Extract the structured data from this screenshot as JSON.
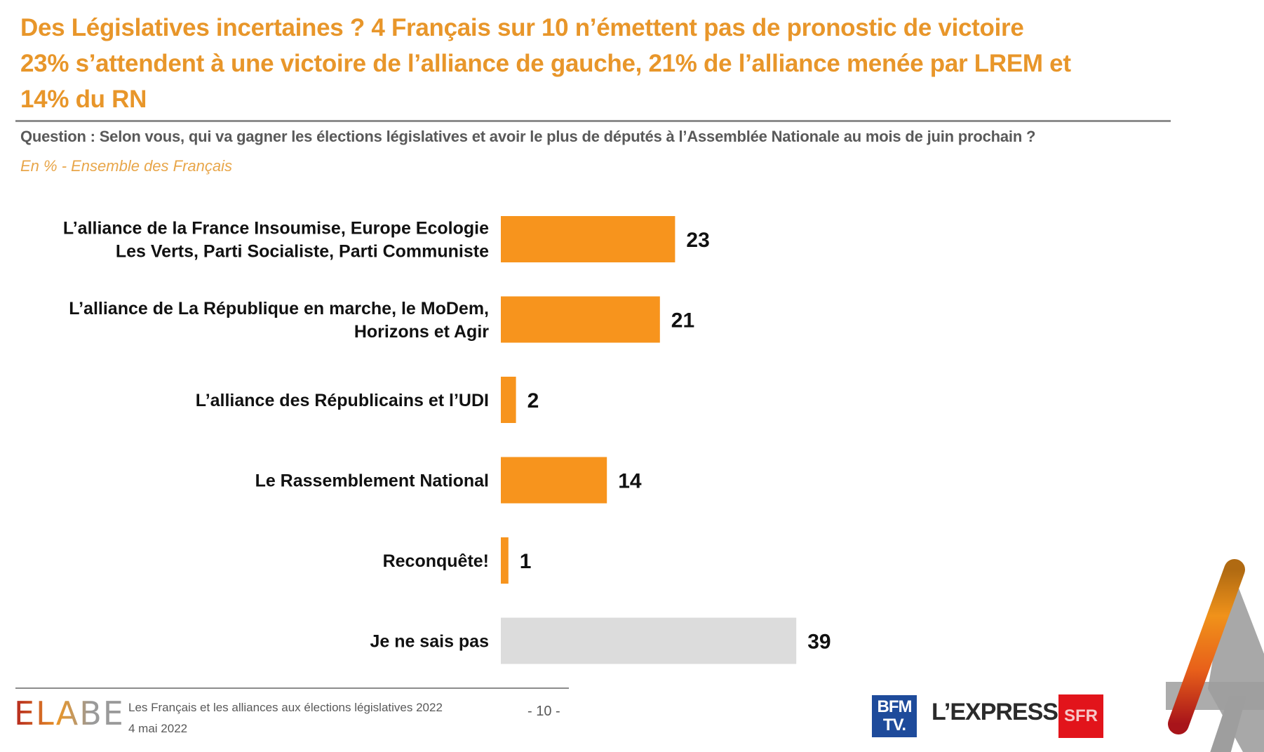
{
  "header": {
    "title_lines": [
      "Des Législatives incertaines ? 4 Français sur 10 n’émettent pas de pronostic de victoire",
      "23% s’attendent à une victoire de l’alliance de gauche, 21% de l’alliance menée par LREM et",
      "14% du RN"
    ],
    "question": "Question : Selon vous, qui va gagner les élections législatives et avoir le plus de députés à l’Assemblée Nationale au mois de juin prochain ?",
    "subtitle": "En % - Ensemble des Français"
  },
  "colors": {
    "accent": "#f7941d",
    "neutral_bar": "#dcdcdc",
    "title": "#e8962a"
  },
  "chart_data": {
    "type": "bar",
    "orientation": "horizontal",
    "unit": "%",
    "categories": [
      [
        "L’alliance de la France Insoumise, Europe Ecologie",
        "Les Verts, Parti Socialiste, Parti Communiste"
      ],
      [
        "L’alliance de La République en marche, le MoDem,",
        "Horizons et Agir"
      ],
      [
        "L’alliance des Républicains et l’UDI"
      ],
      [
        "Le Rassemblement National"
      ],
      [
        "Reconquête!"
      ],
      [
        "Je ne sais pas"
      ]
    ],
    "values": [
      23,
      21,
      2,
      14,
      1,
      39
    ],
    "bar_colors": [
      "#f7941d",
      "#f7941d",
      "#f7941d",
      "#f7941d",
      "#f7941d",
      "#dcdcdc"
    ],
    "xlim": [
      0,
      40
    ],
    "grid": false,
    "data_labels": true
  },
  "footer": {
    "brand": "ELABE",
    "study_title": "Les Français et les alliances aux élections législatives 2022",
    "date": "4 mai 2022",
    "page": "- 10 -",
    "partners": {
      "bfm_line1": "BFM",
      "bfm_line2": "TV.",
      "express": "L’EXPRESS",
      "sfr": "SFR"
    }
  }
}
